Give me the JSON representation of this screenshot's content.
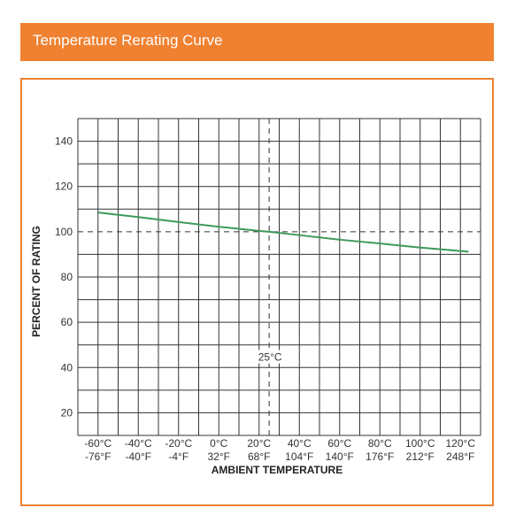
{
  "header": {
    "title": "Temperature Rerating Curve"
  },
  "colors": {
    "accent": "#ef8131",
    "curve": "#3f9a5c",
    "grid": "#333333"
  },
  "chart_data": {
    "type": "line",
    "title": "Temperature Rerating Curve",
    "xlabel": "AMBIENT TEMPERATURE",
    "ylabel": "PERCENT OF RATING",
    "xlim": [
      -70,
      130
    ],
    "ylim": [
      10,
      150
    ],
    "grid": true,
    "x_grid_step": 10,
    "y_grid_step": 10,
    "yticks": [
      20,
      40,
      60,
      80,
      100,
      120,
      140
    ],
    "xticks": [
      {
        "value": -60,
        "c": "-60°C",
        "f": "-76°F"
      },
      {
        "value": -40,
        "c": "-40°C",
        "f": "-40°F"
      },
      {
        "value": -20,
        "c": "-20°C",
        "f": "-4°F"
      },
      {
        "value": 0,
        "c": "0°C",
        "f": "32°F"
      },
      {
        "value": 20,
        "c": "20°C",
        "f": "68°F"
      },
      {
        "value": 40,
        "c": "40°C",
        "f": "104°F"
      },
      {
        "value": 60,
        "c": "60°C",
        "f": "140°F"
      },
      {
        "value": 80,
        "c": "80°C",
        "f": "176°F"
      },
      {
        "value": 100,
        "c": "100°C",
        "f": "212°F"
      },
      {
        "value": 120,
        "c": "120°C",
        "f": "248°F"
      }
    ],
    "series": [
      {
        "name": "Percent of rating",
        "x": [
          -60,
          -40,
          -20,
          0,
          20,
          25,
          40,
          60,
          80,
          100,
          120,
          124
        ],
        "y": [
          108.5,
          106.5,
          104.3,
          102.2,
          100.4,
          100,
          98.5,
          96.5,
          94.8,
          93,
          91.5,
          91.2
        ]
      }
    ],
    "reference_lines": {
      "x": 25,
      "y": 100,
      "annotation": "25°C"
    }
  }
}
